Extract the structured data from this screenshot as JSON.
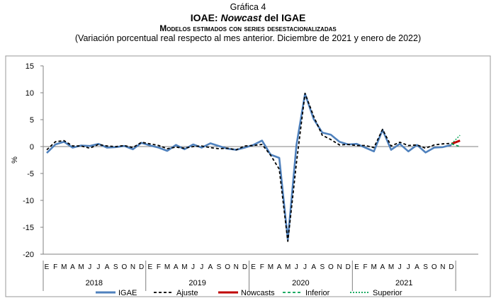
{
  "header": {
    "label": "Gráfica 4",
    "title_main": "IOAE: ",
    "title_italic": "Nowcast",
    "title_end": " del IGAE",
    "subtitle": "Modelos estimados con series desestacionalizadas",
    "note": "(Variación porcentual real respecto al mes anterior. Diciembre de 2021 y enero de 2022)"
  },
  "chart_data": {
    "type": "line",
    "title": "IOAE: Nowcast del IGAE",
    "subtitle": "Modelos estimados con series desestacionalizadas",
    "ylabel": "%",
    "xlabel": "",
    "ylim": [
      -20,
      15
    ],
    "yticks": [
      15,
      10,
      5,
      0,
      -5,
      -10,
      -15,
      -20
    ],
    "grid": false,
    "legend_position": "bottom",
    "month_labels": [
      "E",
      "F",
      "M",
      "A",
      "M",
      "J",
      "J",
      "A",
      "S",
      "O",
      "N",
      "D"
    ],
    "years": [
      "2018",
      "2019",
      "2020",
      "2021"
    ],
    "x_start": "2018-01",
    "series": [
      {
        "name": "IGAE",
        "color": "#4F81BD",
        "style": "solid",
        "values": [
          -1.2,
          0.4,
          0.9,
          -0.2,
          0.2,
          0.1,
          0.5,
          -0.2,
          -0.1,
          0.1,
          -0.5,
          0.7,
          0.2,
          -0.2,
          -0.8,
          0.3,
          -0.5,
          0.4,
          -0.2,
          0.6,
          0.1,
          -0.4,
          -0.6,
          -0.2,
          0.3,
          1.1,
          -1.5,
          -2.1,
          -17.3,
          0.3,
          9.8,
          5.1,
          2.6,
          2.2,
          0.9,
          0.4,
          0.5,
          -0.2,
          -0.9,
          3.1,
          -0.6,
          0.5,
          -0.9,
          0.3,
          -1.1,
          -0.2,
          -0.1,
          0.3
        ]
      },
      {
        "name": "Ajuste",
        "color": "#000000",
        "style": "dashed",
        "values": [
          -0.6,
          0.9,
          1.1,
          0.1,
          0.1,
          -0.3,
          0.4,
          0.1,
          0.0,
          0.2,
          -0.2,
          0.8,
          0.5,
          0.2,
          -0.4,
          -0.1,
          -0.3,
          0.0,
          0.1,
          -0.2,
          -0.4,
          -0.3,
          -0.6,
          0.1,
          0.2,
          0.4,
          -1.6,
          -4.2,
          -17.6,
          -3.0,
          9.9,
          5.6,
          2.1,
          1.3,
          0.3,
          0.4,
          0.2,
          0.2,
          -0.2,
          3.2,
          0.1,
          0.8,
          0.2,
          0.3,
          -0.3,
          0.3,
          0.5,
          0.6
        ]
      },
      {
        "name": "Nowcasts",
        "color": "#C00000",
        "style": "solid",
        "x_index": [
          47,
          48
        ],
        "values": [
          0.5,
          1.1
        ]
      },
      {
        "name": "Inferior",
        "color": "#00A050",
        "style": "dashed",
        "x_index": [
          47,
          48
        ],
        "values": [
          0.5,
          0.0
        ]
      },
      {
        "name": "Superior",
        "color": "#00A050",
        "style": "dotted",
        "x_index": [
          47,
          48
        ],
        "values": [
          0.5,
          2.1
        ]
      }
    ]
  }
}
